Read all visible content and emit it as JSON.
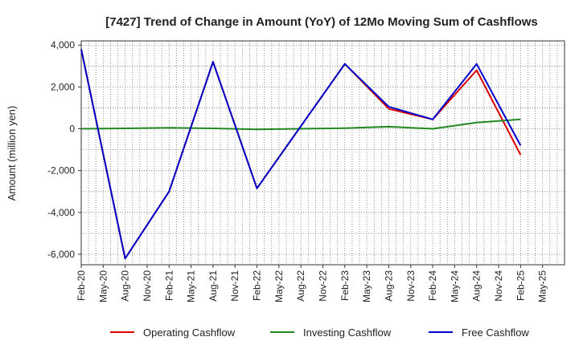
{
  "chart_data": {
    "type": "line",
    "title": "[7427]  Trend of Change in Amount (YoY) of 12Mo Moving Sum of Cashflows",
    "xlabel": "",
    "ylabel": "Amount (million yen)",
    "ylim": [
      -6500,
      4200
    ],
    "yticks": [
      4000,
      2000,
      0,
      -2000,
      -4000,
      -6000
    ],
    "ytick_labels": [
      "4,000",
      "2,000",
      "0",
      "-2,000",
      "-4,000",
      "-6,000"
    ],
    "x_categories": [
      "Feb-20",
      "May-20",
      "Aug-20",
      "Nov-20",
      "Feb-21",
      "May-21",
      "Aug-21",
      "Nov-21",
      "Feb-22",
      "May-22",
      "Aug-22",
      "Nov-22",
      "Feb-23",
      "May-23",
      "Aug-23",
      "Nov-23",
      "Feb-24",
      "May-24",
      "Aug-24",
      "Nov-24",
      "Feb-25",
      "May-25"
    ],
    "grid": true,
    "legend_position": "bottom",
    "series": [
      {
        "name": "Operating Cashflow",
        "color": "#dd0000",
        "points": [
          [
            0,
            3800
          ],
          [
            2,
            -6200
          ],
          [
            4,
            -3000
          ],
          [
            6,
            3200
          ],
          [
            8,
            -2850
          ],
          [
            12,
            3100
          ],
          [
            14,
            950
          ],
          [
            16,
            450
          ],
          [
            18,
            2800
          ],
          [
            20,
            -1250
          ]
        ]
      },
      {
        "name": "Investing Cashflow",
        "color": "#228822",
        "points": [
          [
            0,
            0
          ],
          [
            2,
            20
          ],
          [
            4,
            50
          ],
          [
            6,
            20
          ],
          [
            8,
            -30
          ],
          [
            10,
            0
          ],
          [
            12,
            30
          ],
          [
            14,
            100
          ],
          [
            16,
            0
          ],
          [
            18,
            300
          ],
          [
            20,
            450
          ]
        ]
      },
      {
        "name": "Free Cashflow",
        "color": "#0000cc",
        "points": [
          [
            0,
            3800
          ],
          [
            2,
            -6200
          ],
          [
            4,
            -3000
          ],
          [
            6,
            3200
          ],
          [
            8,
            -2850
          ],
          [
            12,
            3100
          ],
          [
            14,
            1050
          ],
          [
            16,
            450
          ],
          [
            18,
            3100
          ],
          [
            20,
            -800
          ]
        ]
      }
    ]
  }
}
